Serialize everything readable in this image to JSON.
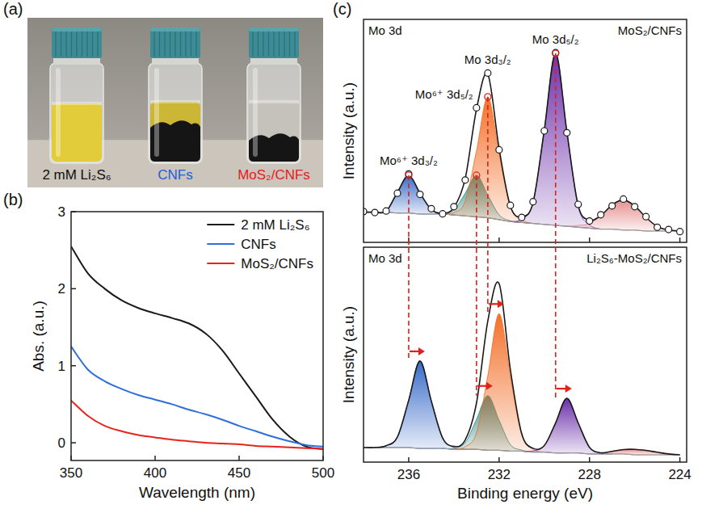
{
  "chart_data": [
    {
      "type": "image",
      "panel_label": "(a)",
      "categories": [
        "2 mM Li₂S₆",
        "CNFs",
        "MoS₂/CNFs"
      ],
      "colors": [
        "#111111",
        "#1d5fd6",
        "#e3201b"
      ]
    },
    {
      "type": "line",
      "panel_label": "(b)",
      "xlabel": "Wavelength (nm)",
      "ylabel": "Abs. (a.u.)",
      "x": [
        350,
        360,
        370,
        380,
        390,
        400,
        410,
        420,
        430,
        440,
        450,
        460,
        470,
        480,
        490,
        500
      ],
      "xlim": [
        350,
        500
      ],
      "xticks": [
        350,
        400,
        450,
        500
      ],
      "ylim": [
        -0.23,
        3
      ],
      "yticks": [
        0,
        1,
        2,
        3
      ],
      "legend": "upper right",
      "grid": false,
      "series": [
        {
          "name": "2 mM Li₂S₆",
          "color": "#1a1a1a",
          "values": [
            2.55,
            2.2,
            2.0,
            1.85,
            1.75,
            1.68,
            1.62,
            1.55,
            1.42,
            1.2,
            0.9,
            0.6,
            0.3,
            0.08,
            -0.05,
            -0.08
          ]
        },
        {
          "name": "CNFs",
          "color": "#2f6fdc",
          "values": [
            1.25,
            0.95,
            0.8,
            0.7,
            0.62,
            0.56,
            0.5,
            0.43,
            0.37,
            0.3,
            0.22,
            0.15,
            0.08,
            0.02,
            -0.03,
            -0.05
          ]
        },
        {
          "name": "MoS₂/CNFs",
          "color": "#e8231c",
          "values": [
            0.55,
            0.35,
            0.22,
            0.15,
            0.1,
            0.07,
            0.04,
            0.02,
            0.0,
            -0.01,
            -0.02,
            -0.04,
            -0.05,
            -0.06,
            -0.07,
            -0.08
          ]
        }
      ]
    },
    {
      "type": "area",
      "panel_label": "(c)",
      "title": "Mo 3d",
      "subtitle": "MoS₂/CNFs",
      "ylabel": "Intensity (a.u.)",
      "x": [
        238,
        237.5,
        237,
        236.5,
        236,
        235.5,
        235,
        234.5,
        234,
        233.5,
        233,
        232.5,
        232,
        231.5,
        231,
        230.5,
        230,
        229.5,
        229,
        228.5,
        228,
        227.5,
        227,
        226.5,
        226,
        225.5,
        225,
        224.5,
        224
      ],
      "xlim": [
        238,
        223.7
      ],
      "xticks": [
        236,
        232,
        228,
        224
      ],
      "ylim": [
        0,
        118
      ],
      "tick_labels": false,
      "series": [
        {
          "type": "line",
          "color": "#9a9a9a",
          "values": [
            16,
            16,
            16,
            15.5,
            15.5,
            15,
            15,
            15,
            14.5,
            14,
            13.5,
            13,
            12,
            11,
            10.5,
            10,
            9.5,
            9,
            8.5,
            8,
            7.5,
            7,
            7,
            6.5,
            6.5,
            6,
            6,
            6,
            6
          ]
        },
        {
          "type": "area",
          "name": "Mo⁶⁺ 3d₃/₂",
          "color": "#2f63c6",
          "values": [
            null,
            16,
            16.4,
            26.5,
            35.5,
            26,
            17.4,
            15.4,
            14.5,
            null,
            null,
            null,
            null,
            null,
            null,
            null,
            null,
            null,
            null,
            null,
            null,
            null,
            null,
            null,
            null,
            null,
            null,
            null,
            null
          ]
        },
        {
          "type": "area",
          "name": "Mo⁶⁺ 3d₅/₂",
          "color": "#2e8b86",
          "values": [
            null,
            null,
            null,
            null,
            null,
            null,
            null,
            15,
            17.1,
            26,
            35.5,
            25,
            14.6,
            11.4,
            10.5,
            null,
            null,
            null,
            null,
            null,
            null,
            null,
            null,
            null,
            null,
            null,
            null,
            null,
            null
          ]
        },
        {
          "type": "area",
          "name": "Mo 3d₃/₂",
          "color": "#f26a21",
          "values": [
            null,
            null,
            null,
            null,
            null,
            null,
            null,
            15,
            15.8,
            21.7,
            48.5,
            77,
            47,
            18.7,
            11.8,
            10,
            null,
            null,
            null,
            null,
            null,
            null,
            null,
            null,
            null,
            null,
            null,
            null,
            null
          ]
        },
        {
          "type": "area",
          "name": "Mo 3d₅/₂",
          "color": "#6526a6",
          "values": [
            null,
            null,
            null,
            null,
            null,
            null,
            null,
            null,
            null,
            null,
            null,
            null,
            null,
            11,
            12.3,
            21,
            59.5,
            100,
            58.5,
            19,
            9.3,
            7,
            null,
            null,
            null,
            null,
            null,
            null,
            null
          ]
        },
        {
          "type": "area",
          "color": "#e58a8a",
          "values": [
            null,
            null,
            null,
            null,
            null,
            null,
            null,
            null,
            null,
            null,
            null,
            null,
            null,
            null,
            null,
            null,
            null,
            null,
            8.5,
            9,
            9.9,
            14.2,
            19.8,
            22.5,
            19.3,
            13.2,
            8.4,
            6.5,
            6
          ]
        },
        {
          "type": "line",
          "color": "#1a1a1a",
          "values": [
            16,
            16,
            16.4,
            26.5,
            35.5,
            26,
            17.4,
            15.4,
            18.4,
            33.7,
            70.5,
            89,
            49.6,
            19.1,
            13.6,
            21,
            59.5,
            100,
            58.5,
            19.5,
            11.7,
            14.2,
            19.8,
            22.5,
            19.3,
            13.2,
            8.4,
            6.5,
            6
          ]
        },
        {
          "type": "scatter",
          "marker": "circle",
          "color": "#1a1a1a",
          "values": [
            16.3,
            15.8,
            16.6,
            26.0,
            36.2,
            25.4,
            17.8,
            15.1,
            18.9,
            33.0,
            71.2,
            89.6,
            49.0,
            19.6,
            13.2,
            21.5,
            59.0,
            100.4,
            58.0,
            20.1,
            11.3,
            14.6,
            19.3,
            22.9,
            18.9,
            13.6,
            8.0,
            6.8,
            5.7
          ]
        }
      ]
    },
    {
      "type": "area",
      "title": "Mo 3d",
      "subtitle": "Li₂S₆-MoS₂/CNFs",
      "xlabel": "Binding energy (eV)",
      "ylabel": "Intensity (a.u.)",
      "x": [
        238,
        237.5,
        237,
        236.5,
        236,
        235.5,
        235,
        234.5,
        234,
        233.5,
        233,
        232.5,
        232,
        231.5,
        231,
        230.5,
        230,
        229.5,
        229,
        228.5,
        228,
        227.5,
        227,
        226.5,
        226,
        225.5,
        225,
        224.5,
        224
      ],
      "xlim": [
        238,
        223.7
      ],
      "xticks": [
        236,
        232,
        228,
        224
      ],
      "ylim": [
        0,
        118
      ],
      "tick_labels": "x",
      "series": [
        {
          "type": "line",
          "color": "#9a9a9a",
          "values": [
            8,
            8,
            8,
            8,
            8,
            7.5,
            7.5,
            7.5,
            7,
            7,
            7,
            6.5,
            6.5,
            6,
            6,
            5.5,
            5.5,
            5,
            5,
            5,
            4.5,
            4.5,
            4.5,
            4.5,
            4,
            4,
            4,
            4,
            4
          ]
        },
        {
          "type": "area",
          "color": "#2f63c6",
          "values": [
            null,
            8,
            9,
            13.8,
            34,
            55.5,
            33.5,
            13.3,
            8,
            7,
            null,
            null,
            null,
            null,
            null,
            null,
            null,
            null,
            null,
            null,
            null,
            null,
            null,
            null,
            null,
            null,
            null,
            null,
            null
          ]
        },
        {
          "type": "area",
          "color": "#2e8b86",
          "values": [
            null,
            null,
            null,
            null,
            null,
            null,
            null,
            7.5,
            7.6,
            10.6,
            23.5,
            36.5,
            23,
            9.6,
            6.6,
            5.5,
            null,
            null,
            null,
            null,
            null,
            null,
            null,
            null,
            null,
            null,
            null,
            null,
            null
          ]
        },
        {
          "type": "area",
          "color": "#f26a21",
          "values": [
            null,
            null,
            null,
            null,
            null,
            null,
            null,
            null,
            7,
            8.5,
            16,
            47.5,
            81.5,
            47,
            15,
            7,
            5.5,
            null,
            null,
            null,
            null,
            null,
            null,
            null,
            null,
            null,
            null,
            null,
            null
          ]
        },
        {
          "type": "area",
          "color": "#6526a6",
          "values": [
            null,
            null,
            null,
            null,
            null,
            null,
            null,
            null,
            null,
            null,
            null,
            null,
            null,
            null,
            6,
            6.1,
            9.1,
            21.5,
            35,
            21.5,
            8.1,
            5.1,
            4.5,
            null,
            null,
            null,
            null,
            null,
            null
          ]
        },
        {
          "type": "area",
          "color": "#e58a8a",
          "values": [
            null,
            null,
            null,
            null,
            null,
            null,
            null,
            null,
            null,
            null,
            null,
            null,
            null,
            null,
            null,
            null,
            null,
            null,
            null,
            null,
            null,
            4.5,
            5.9,
            6.9,
            7,
            6.4,
            5.4,
            4.5,
            4
          ]
        },
        {
          "type": "line",
          "color": "#1a1a1a",
          "values": [
            8,
            8,
            9,
            13.8,
            34,
            55.5,
            33.5,
            13.3,
            8.6,
            12.1,
            32.5,
            77.5,
            98,
            50.6,
            15.6,
            7.6,
            9.1,
            21.5,
            35,
            21.5,
            8.1,
            5.1,
            5.9,
            6.9,
            7,
            6.4,
            5.4,
            4.5,
            4
          ]
        }
      ]
    }
  ]
}
